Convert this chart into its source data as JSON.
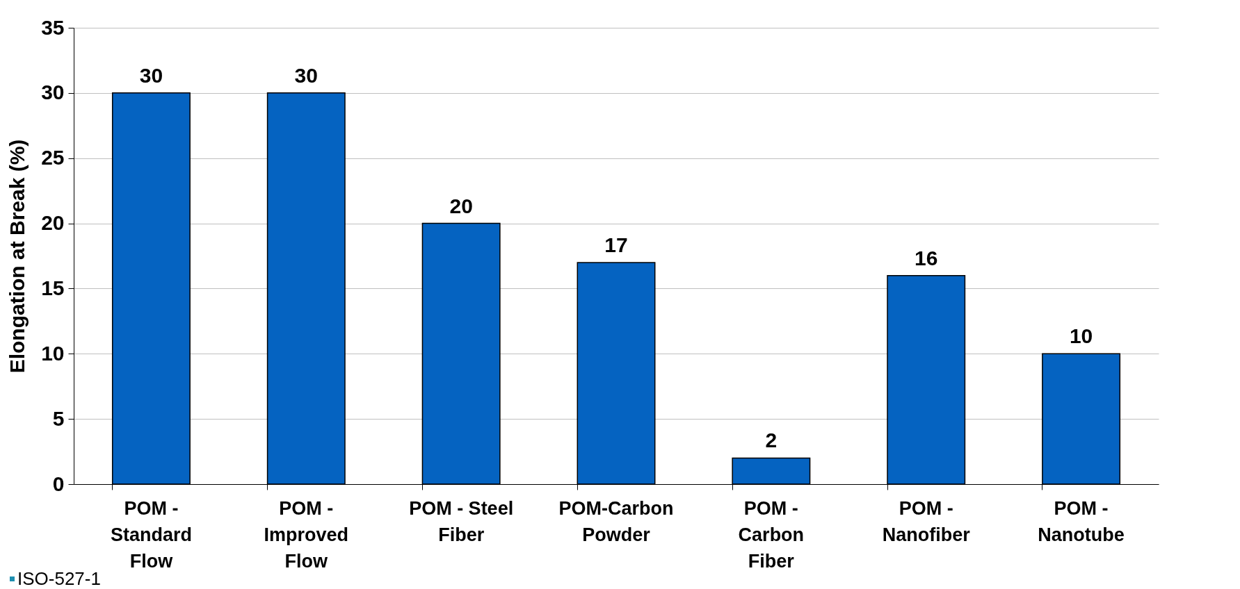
{
  "chart_data": {
    "type": "bar",
    "ylabel": "Elongation at Break (%)",
    "categories": [
      "POM - Standard Flow",
      "POM - Improved Flow",
      "POM - Steel Fiber",
      "POM-Carbon Powder",
      "POM - Carbon Fiber",
      "POM - Nanofiber",
      "POM - Nanotube"
    ],
    "values": [
      30,
      30,
      20,
      17,
      2,
      16,
      10
    ],
    "color": "#0563c1",
    "ylim": [
      0,
      35
    ],
    "yticks": [
      0,
      5,
      10,
      15,
      20,
      25,
      30,
      35
    ],
    "grid": "y",
    "data_labels": true,
    "annotations": [
      "ISO-527-1"
    ]
  }
}
